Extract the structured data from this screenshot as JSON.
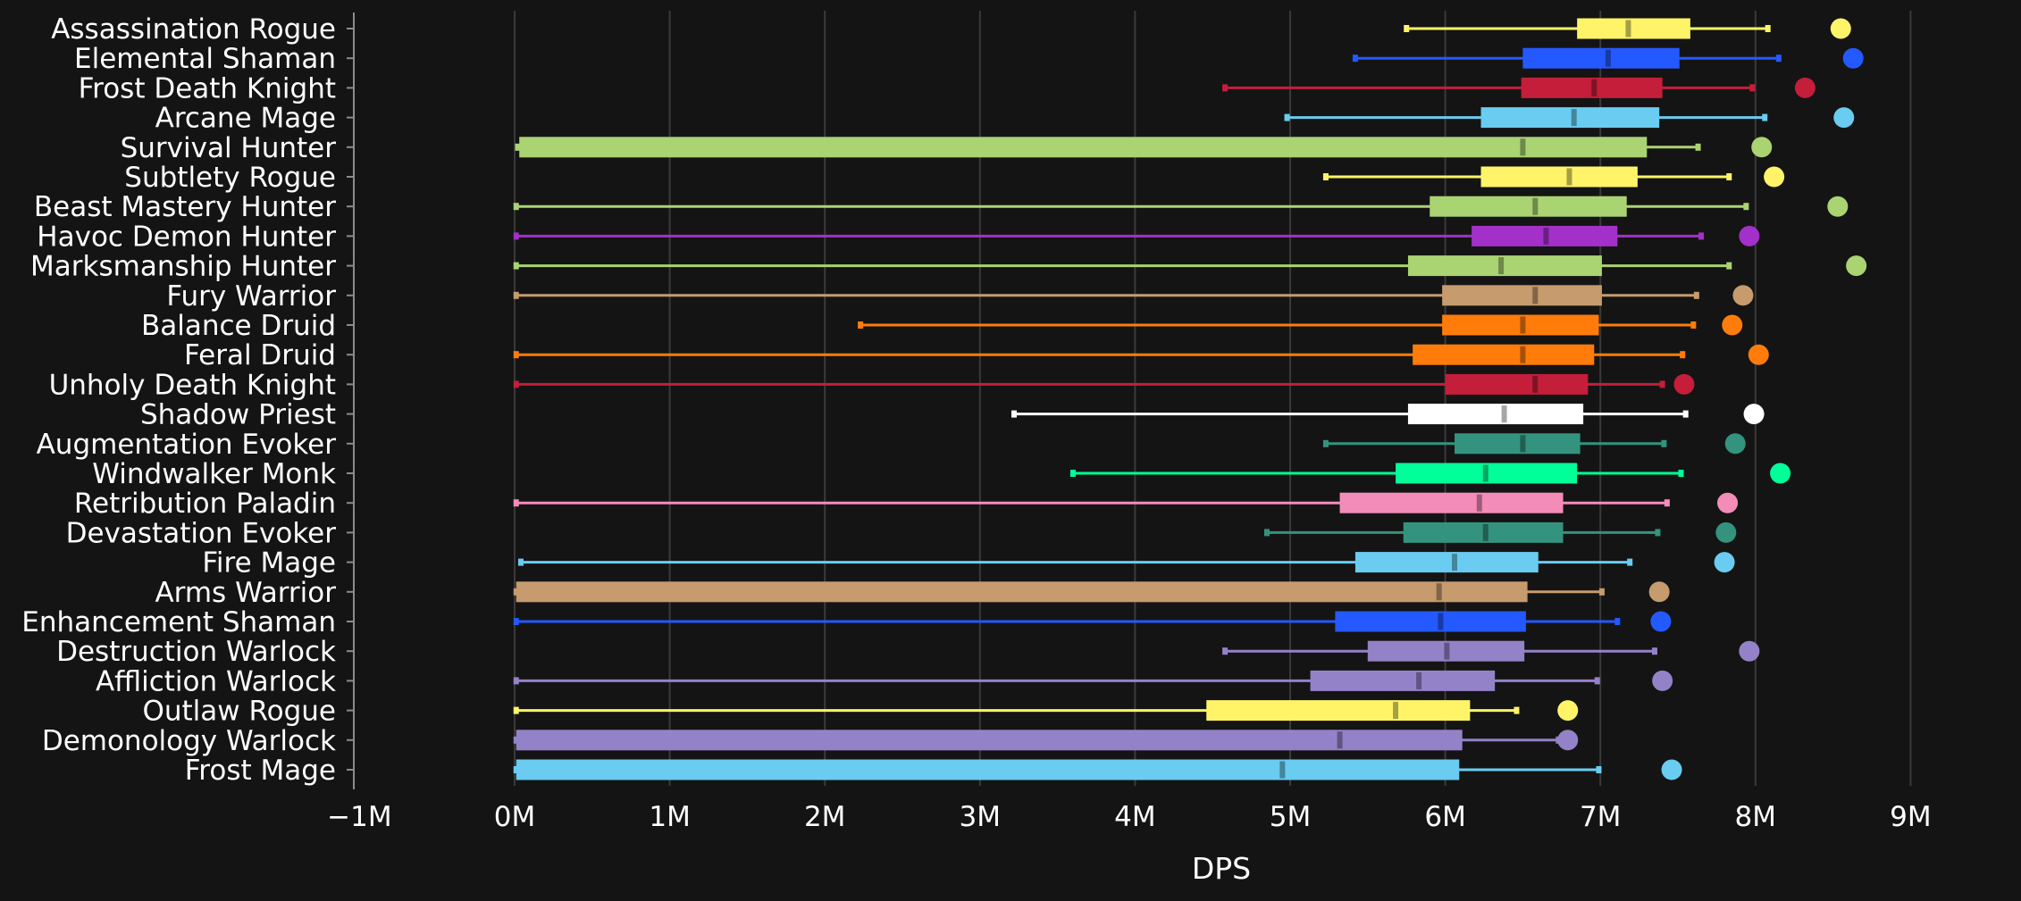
{
  "chart_data": {
    "type": "box",
    "orientation": "horizontal",
    "xlabel": "DPS",
    "ylabel": "",
    "xlim": [
      -1000000,
      9000000
    ],
    "x_ticks": [
      {
        "value": -1000000,
        "label": "−1M"
      },
      {
        "value": 0,
        "label": "0M"
      },
      {
        "value": 1000000,
        "label": "1M"
      },
      {
        "value": 2000000,
        "label": "2M"
      },
      {
        "value": 3000000,
        "label": "3M"
      },
      {
        "value": 4000000,
        "label": "4M"
      },
      {
        "value": 5000000,
        "label": "5M"
      },
      {
        "value": 6000000,
        "label": "6M"
      },
      {
        "value": 7000000,
        "label": "7M"
      },
      {
        "value": 8000000,
        "label": "8M"
      },
      {
        "value": 9000000,
        "label": "9M"
      }
    ],
    "grid": true,
    "series": [
      {
        "name": "Assassination Rogue",
        "color": "#FFF468",
        "min": 5750000,
        "q1": 6850000,
        "median": 7180000,
        "q3": 7580000,
        "max": 8080000,
        "outlier": 8550000
      },
      {
        "name": "Elemental Shaman",
        "color": "#2459FF",
        "min": 5420000,
        "q1": 6500000,
        "median": 7050000,
        "q3": 7510000,
        "max": 8150000,
        "outlier": 8630000
      },
      {
        "name": "Frost Death Knight",
        "color": "#C41E3A",
        "min": 4580000,
        "q1": 6490000,
        "median": 6960000,
        "q3": 7400000,
        "max": 7980000,
        "outlier": 8320000
      },
      {
        "name": "Arcane Mage",
        "color": "#69CCF0",
        "min": 4980000,
        "q1": 6230000,
        "median": 6830000,
        "q3": 7380000,
        "max": 8060000,
        "outlier": 8570000
      },
      {
        "name": "Survival Hunter",
        "color": "#AAD372",
        "min": 20000,
        "q1": 30000,
        "median": 6500000,
        "q3": 7300000,
        "max": 7630000,
        "outlier": 8040000
      },
      {
        "name": "Subtlety Rogue",
        "color": "#FFF468",
        "min": 5230000,
        "q1": 6230000,
        "median": 6800000,
        "q3": 7240000,
        "max": 7830000,
        "outlier": 8120000
      },
      {
        "name": "Beast Mastery Hunter",
        "color": "#AAD372",
        "min": 10000,
        "q1": 5900000,
        "median": 6580000,
        "q3": 7170000,
        "max": 7940000,
        "outlier": 8530000
      },
      {
        "name": "Havoc Demon Hunter",
        "color": "#A330C9",
        "min": 10000,
        "q1": 6170000,
        "median": 6650000,
        "q3": 7110000,
        "max": 7650000,
        "outlier": 7960000
      },
      {
        "name": "Marksmanship Hunter",
        "color": "#AAD372",
        "min": 10000,
        "q1": 5760000,
        "median": 6360000,
        "q3": 7010000,
        "max": 7830000,
        "outlier": 8650000
      },
      {
        "name": "Fury Warrior",
        "color": "#C69B6D",
        "min": 10000,
        "q1": 5980000,
        "median": 6580000,
        "q3": 7010000,
        "max": 7620000,
        "outlier": 7920000
      },
      {
        "name": "Balance Druid",
        "color": "#FF7C0A",
        "min": 2230000,
        "q1": 5980000,
        "median": 6500000,
        "q3": 6990000,
        "max": 7600000,
        "outlier": 7850000
      },
      {
        "name": "Feral Druid",
        "color": "#FF7C0A",
        "min": 10000,
        "q1": 5790000,
        "median": 6500000,
        "q3": 6960000,
        "max": 7530000,
        "outlier": 8020000
      },
      {
        "name": "Unholy Death Knight",
        "color": "#C41E3A",
        "min": 10000,
        "q1": 6000000,
        "median": 6580000,
        "q3": 6920000,
        "max": 7400000,
        "outlier": 7540000
      },
      {
        "name": "Shadow Priest",
        "color": "#FFFFFF",
        "min": 3220000,
        "q1": 5760000,
        "median": 6380000,
        "q3": 6890000,
        "max": 7550000,
        "outlier": 7990000
      },
      {
        "name": "Augmentation Evoker",
        "color": "#33937F",
        "min": 5230000,
        "q1": 6060000,
        "median": 6500000,
        "q3": 6870000,
        "max": 7410000,
        "outlier": 7870000
      },
      {
        "name": "Windwalker Monk",
        "color": "#00FF98",
        "min": 3600000,
        "q1": 5680000,
        "median": 6260000,
        "q3": 6850000,
        "max": 7520000,
        "outlier": 8160000
      },
      {
        "name": "Retribution Paladin",
        "color": "#F48CBA",
        "min": 10000,
        "q1": 5320000,
        "median": 6220000,
        "q3": 6760000,
        "max": 7430000,
        "outlier": 7820000
      },
      {
        "name": "Devastation Evoker",
        "color": "#33937F",
        "min": 4850000,
        "q1": 5730000,
        "median": 6260000,
        "q3": 6760000,
        "max": 7370000,
        "outlier": 7810000
      },
      {
        "name": "Fire Mage",
        "color": "#69CCF0",
        "min": 40000,
        "q1": 5420000,
        "median": 6060000,
        "q3": 6600000,
        "max": 7190000,
        "outlier": 7800000
      },
      {
        "name": "Arms Warrior",
        "color": "#C69B6D",
        "min": 10000,
        "q1": 10000,
        "median": 5960000,
        "q3": 6530000,
        "max": 7010000,
        "outlier": 7380000
      },
      {
        "name": "Enhancement Shaman",
        "color": "#2459FF",
        "min": 10000,
        "q1": 5290000,
        "median": 5970000,
        "q3": 6520000,
        "max": 7110000,
        "outlier": 7390000
      },
      {
        "name": "Destruction Warlock",
        "color": "#9482C9",
        "min": 4580000,
        "q1": 5500000,
        "median": 6010000,
        "q3": 6510000,
        "max": 7350000,
        "outlier": 7960000
      },
      {
        "name": "Affliction Warlock",
        "color": "#9482C9",
        "min": 10000,
        "q1": 5130000,
        "median": 5830000,
        "q3": 6320000,
        "max": 6980000,
        "outlier": 7400000
      },
      {
        "name": "Outlaw Rogue",
        "color": "#FFF468",
        "min": 10000,
        "q1": 4460000,
        "median": 5680000,
        "q3": 6160000,
        "max": 6460000,
        "outlier": 6790000
      },
      {
        "name": "Demonology Warlock",
        "color": "#9482C9",
        "min": 10000,
        "q1": 10000,
        "median": 5320000,
        "q3": 6110000,
        "max": 6730000,
        "outlier": 6790000
      },
      {
        "name": "Frost Mage",
        "color": "#69CCF0",
        "min": 10000,
        "q1": 10000,
        "median": 4950000,
        "q3": 6090000,
        "max": 6990000,
        "outlier": 7460000
      }
    ]
  }
}
